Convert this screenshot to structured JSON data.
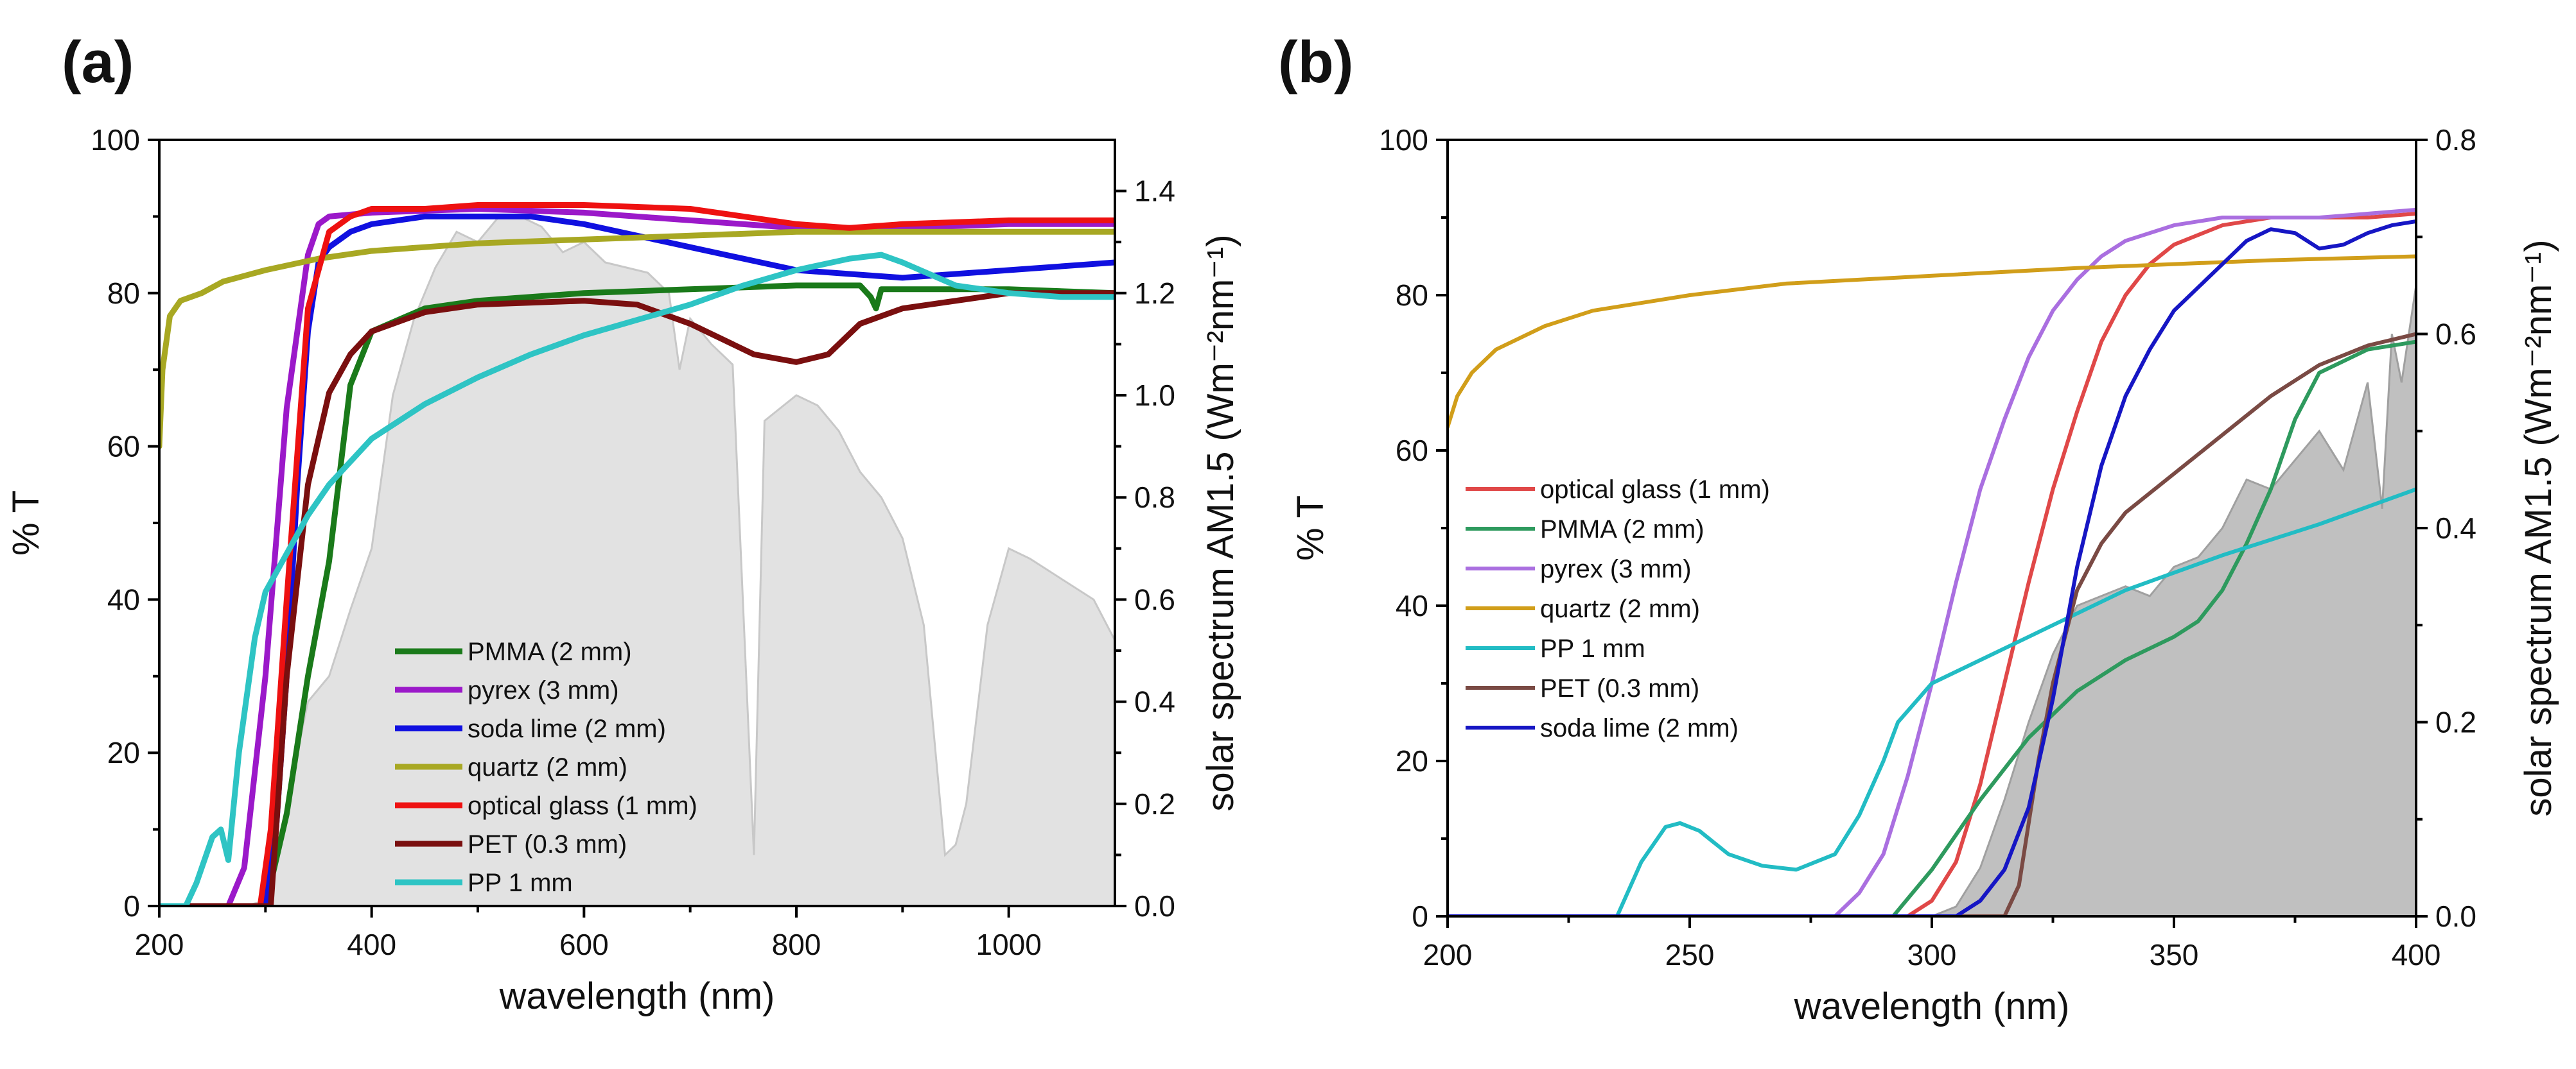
{
  "chart_data": [
    {
      "panel_label": "(a)",
      "type": "line",
      "title": "",
      "xlabel": "wavelength (nm)",
      "ylabel": "% T",
      "y2label": "solar spectrum AM1.5 (Wm⁻²nm⁻¹)",
      "xlim": [
        200,
        1100
      ],
      "ylim": [
        0,
        100
      ],
      "y2lim": [
        0,
        1.5
      ],
      "xticks": [
        "200",
        "400",
        "600",
        "800",
        "1000"
      ],
      "xtick_values": [
        200,
        400,
        600,
        800,
        1000
      ],
      "yticks": [
        "0",
        "20",
        "40",
        "60",
        "80",
        "100"
      ],
      "ytick_values": [
        0,
        20,
        40,
        60,
        80,
        100
      ],
      "y2ticks": [
        "0.0",
        "0.2",
        "0.4",
        "0.6",
        "0.8",
        "1.0",
        "1.2",
        "1.4"
      ],
      "y2tick_values": [
        0,
        0.2,
        0.4,
        0.6,
        0.8,
        1.0,
        1.2,
        1.4
      ],
      "legend_position": "bottom-center",
      "spectrum": {
        "name": "solar spectrum AM1.5",
        "color": "#c8c8c8",
        "fill": "#e2e2e2",
        "x": [
          280,
          300,
          320,
          340,
          360,
          380,
          400,
          420,
          440,
          460,
          480,
          500,
          520,
          540,
          560,
          580,
          600,
          620,
          640,
          660,
          680,
          690,
          700,
          720,
          740,
          760,
          770,
          800,
          820,
          840,
          860,
          880,
          900,
          920,
          940,
          950,
          960,
          980,
          1000,
          1020,
          1050,
          1080,
          1100
        ],
        "y": [
          0.0,
          0.01,
          0.2,
          0.4,
          0.45,
          0.58,
          0.7,
          1.0,
          1.15,
          1.25,
          1.32,
          1.3,
          1.35,
          1.35,
          1.33,
          1.28,
          1.3,
          1.26,
          1.25,
          1.24,
          1.2,
          1.05,
          1.15,
          1.1,
          1.06,
          0.1,
          0.95,
          1.0,
          0.98,
          0.93,
          0.85,
          0.8,
          0.72,
          0.55,
          0.1,
          0.12,
          0.2,
          0.55,
          0.7,
          0.68,
          0.64,
          0.6,
          0.52
        ]
      },
      "series": [
        {
          "name": "PMMA (2 mm)",
          "color": "#1a7a1a",
          "x": [
            200,
            300,
            320,
            340,
            360,
            380,
            400,
            450,
            500,
            600,
            700,
            800,
            860,
            870,
            875,
            880,
            900,
            1000,
            1100
          ],
          "y": [
            0,
            0,
            12,
            30,
            45,
            68,
            75,
            78,
            79,
            80,
            80.5,
            81,
            81,
            79.5,
            78,
            80.5,
            80.5,
            80.5,
            80
          ]
        },
        {
          "name": "pyrex (3 mm)",
          "color": "#9b19c9",
          "x": [
            200,
            265,
            280,
            300,
            320,
            340,
            350,
            360,
            400,
            500,
            600,
            700,
            800,
            900,
            1000,
            1100
          ],
          "y": [
            0,
            0,
            5,
            30,
            65,
            85,
            89,
            90,
            90.5,
            91,
            90.5,
            89.5,
            88.5,
            88.5,
            89,
            89
          ]
        },
        {
          "name": "soda lime (2 mm)",
          "color": "#1010e0",
          "x": [
            200,
            300,
            310,
            320,
            330,
            340,
            350,
            360,
            380,
            400,
            450,
            500,
            550,
            600,
            700,
            800,
            900,
            1000,
            1100
          ],
          "y": [
            0,
            0,
            10,
            30,
            55,
            75,
            84,
            86,
            88,
            89,
            90,
            90,
            90,
            89,
            86,
            83,
            82,
            83,
            84
          ]
        },
        {
          "name": "quartz (2 mm)",
          "color": "#a8a823",
          "x": [
            200,
            203,
            210,
            220,
            240,
            260,
            300,
            350,
            400,
            500,
            600,
            700,
            800,
            900,
            1000,
            1100
          ],
          "y": [
            60,
            70,
            77,
            79,
            80,
            81.5,
            83,
            84.5,
            85.5,
            86.5,
            87,
            87.5,
            88,
            88,
            88,
            88
          ]
        },
        {
          "name": "optical glass (1 mm)",
          "color": "#ee1111",
          "x": [
            200,
            295,
            305,
            320,
            340,
            360,
            380,
            400,
            450,
            500,
            600,
            700,
            800,
            850,
            900,
            1000,
            1100
          ],
          "y": [
            0,
            0,
            10,
            40,
            78,
            88,
            90,
            91,
            91,
            91.5,
            91.5,
            91,
            89,
            88.5,
            89,
            89.5,
            89.5
          ]
        },
        {
          "name": "PET (0.3 mm)",
          "color": "#7a0f0f",
          "x": [
            200,
            305,
            320,
            340,
            360,
            380,
            400,
            450,
            500,
            600,
            650,
            700,
            760,
            800,
            830,
            860,
            900,
            1000,
            1100
          ],
          "y": [
            0,
            0,
            30,
            55,
            67,
            72,
            75,
            77.5,
            78.5,
            79,
            78.5,
            76,
            72,
            71,
            72,
            76,
            78,
            80,
            80
          ]
        },
        {
          "name": "PP 1  mm",
          "color": "#2ec4c4",
          "x": [
            200,
            225,
            235,
            250,
            258,
            265,
            275,
            290,
            300,
            320,
            340,
            360,
            380,
            400,
            450,
            500,
            550,
            600,
            650,
            700,
            750,
            800,
            850,
            880,
            900,
            950,
            1000,
            1050,
            1100
          ],
          "y": [
            0,
            0,
            3,
            9,
            10,
            6,
            20,
            35,
            41,
            46,
            51,
            55,
            58,
            61,
            65.5,
            69,
            72,
            74.5,
            76.5,
            78.5,
            81,
            83,
            84.5,
            85,
            84,
            81,
            80,
            79.5,
            79.5
          ]
        }
      ]
    },
    {
      "panel_label": "(b)",
      "type": "line",
      "title": "",
      "xlabel": "wavelength (nm)",
      "ylabel": "% T",
      "y2label": "solar spectrum AM1.5 (Wm⁻²nm⁻¹)",
      "xlim": [
        200,
        400
      ],
      "ylim": [
        0,
        100
      ],
      "y2lim": [
        0,
        0.8
      ],
      "xticks": [
        "200",
        "250",
        "300",
        "350",
        "400"
      ],
      "xtick_values": [
        200,
        250,
        300,
        350,
        400
      ],
      "yticks": [
        "0",
        "20",
        "40",
        "60",
        "80",
        "100"
      ],
      "ytick_values": [
        0,
        20,
        40,
        60,
        80,
        100
      ],
      "y2ticks": [
        "0.0",
        "0.2",
        "0.4",
        "0.6",
        "0.8"
      ],
      "y2tick_values": [
        0,
        0.2,
        0.4,
        0.6,
        0.8
      ],
      "legend_position": "middle-left",
      "spectrum": {
        "name": "solar spectrum AM1.5",
        "color": "#a0a0a0",
        "fill": "#c0c0c0",
        "x": [
          300,
          305,
          310,
          315,
          320,
          325,
          330,
          335,
          340,
          345,
          350,
          355,
          360,
          365,
          370,
          375,
          380,
          385,
          390,
          393,
          395,
          397,
          400
        ],
        "y": [
          0.0,
          0.01,
          0.05,
          0.12,
          0.2,
          0.27,
          0.32,
          0.33,
          0.34,
          0.33,
          0.36,
          0.37,
          0.4,
          0.45,
          0.44,
          0.47,
          0.5,
          0.46,
          0.55,
          0.42,
          0.6,
          0.55,
          0.65
        ]
      },
      "series": [
        {
          "name": "optical glass (1 mm)",
          "color": "#e04848",
          "x": [
            200,
            295,
            300,
            305,
            310,
            315,
            320,
            325,
            330,
            335,
            340,
            345,
            350,
            360,
            370,
            380,
            390,
            400
          ],
          "y": [
            0,
            0,
            2,
            7,
            17,
            30,
            43,
            55,
            65,
            74,
            80,
            84,
            86.5,
            89,
            90,
            90,
            90,
            90.5
          ]
        },
        {
          "name": "PMMA (2 mm)",
          "color": "#2e9a5e",
          "x": [
            200,
            292,
            300,
            310,
            320,
            330,
            340,
            350,
            355,
            360,
            365,
            370,
            375,
            380,
            390,
            400
          ],
          "y": [
            0,
            0,
            6,
            15,
            23,
            29,
            33,
            36,
            38,
            42,
            48,
            55,
            64,
            70,
            73,
            74
          ]
        },
        {
          "name": "pyrex (3 mm)",
          "color": "#aa6fe0",
          "x": [
            200,
            280,
            285,
            290,
            295,
            300,
            305,
            310,
            315,
            320,
            325,
            330,
            335,
            340,
            350,
            360,
            370,
            380,
            390,
            400
          ],
          "y": [
            0,
            0,
            3,
            8,
            18,
            30,
            43,
            55,
            64,
            72,
            78,
            82,
            85,
            87,
            89,
            90,
            90,
            90,
            90.5,
            91
          ]
        },
        {
          "name": "quartz (2 mm)",
          "color": "#d19e1a",
          "x": [
            200,
            202,
            205,
            210,
            220,
            230,
            250,
            270,
            300,
            330,
            350,
            370,
            400
          ],
          "y": [
            63,
            67,
            70,
            73,
            76,
            78,
            80,
            81.5,
            82.5,
            83.5,
            84,
            84.5,
            85
          ]
        },
        {
          "name": "PP 1  mm",
          "color": "#22bcc4",
          "x": [
            200,
            235,
            240,
            245,
            248,
            252,
            258,
            265,
            272,
            280,
            285,
            290,
            293,
            300,
            320,
            340,
            360,
            380,
            400
          ],
          "y": [
            0,
            0,
            7,
            11.5,
            12,
            11,
            8,
            6.5,
            6,
            8,
            13,
            20,
            25,
            30,
            36,
            42,
            46.5,
            50.5,
            55
          ]
        },
        {
          "name": "PET (0.3 mm)",
          "color": "#7a4a44",
          "x": [
            200,
            315,
            318,
            320,
            322,
            325,
            330,
            335,
            340,
            350,
            360,
            370,
            380,
            390,
            400
          ],
          "y": [
            0,
            0,
            4,
            12,
            20,
            30,
            42,
            48,
            52,
            57,
            62,
            67,
            71,
            73.5,
            75
          ]
        },
        {
          "name": "soda lime (2 mm)",
          "color": "#1616c4",
          "x": [
            200,
            305,
            310,
            315,
            320,
            325,
            330,
            335,
            340,
            345,
            350,
            355,
            360,
            365,
            370,
            375,
            380,
            385,
            390,
            395,
            400
          ],
          "y": [
            0,
            0,
            2,
            6,
            14,
            28,
            45,
            58,
            67,
            73,
            78,
            81,
            84,
            87,
            88.5,
            88,
            86,
            86.5,
            88,
            89,
            89.5
          ]
        }
      ]
    }
  ]
}
